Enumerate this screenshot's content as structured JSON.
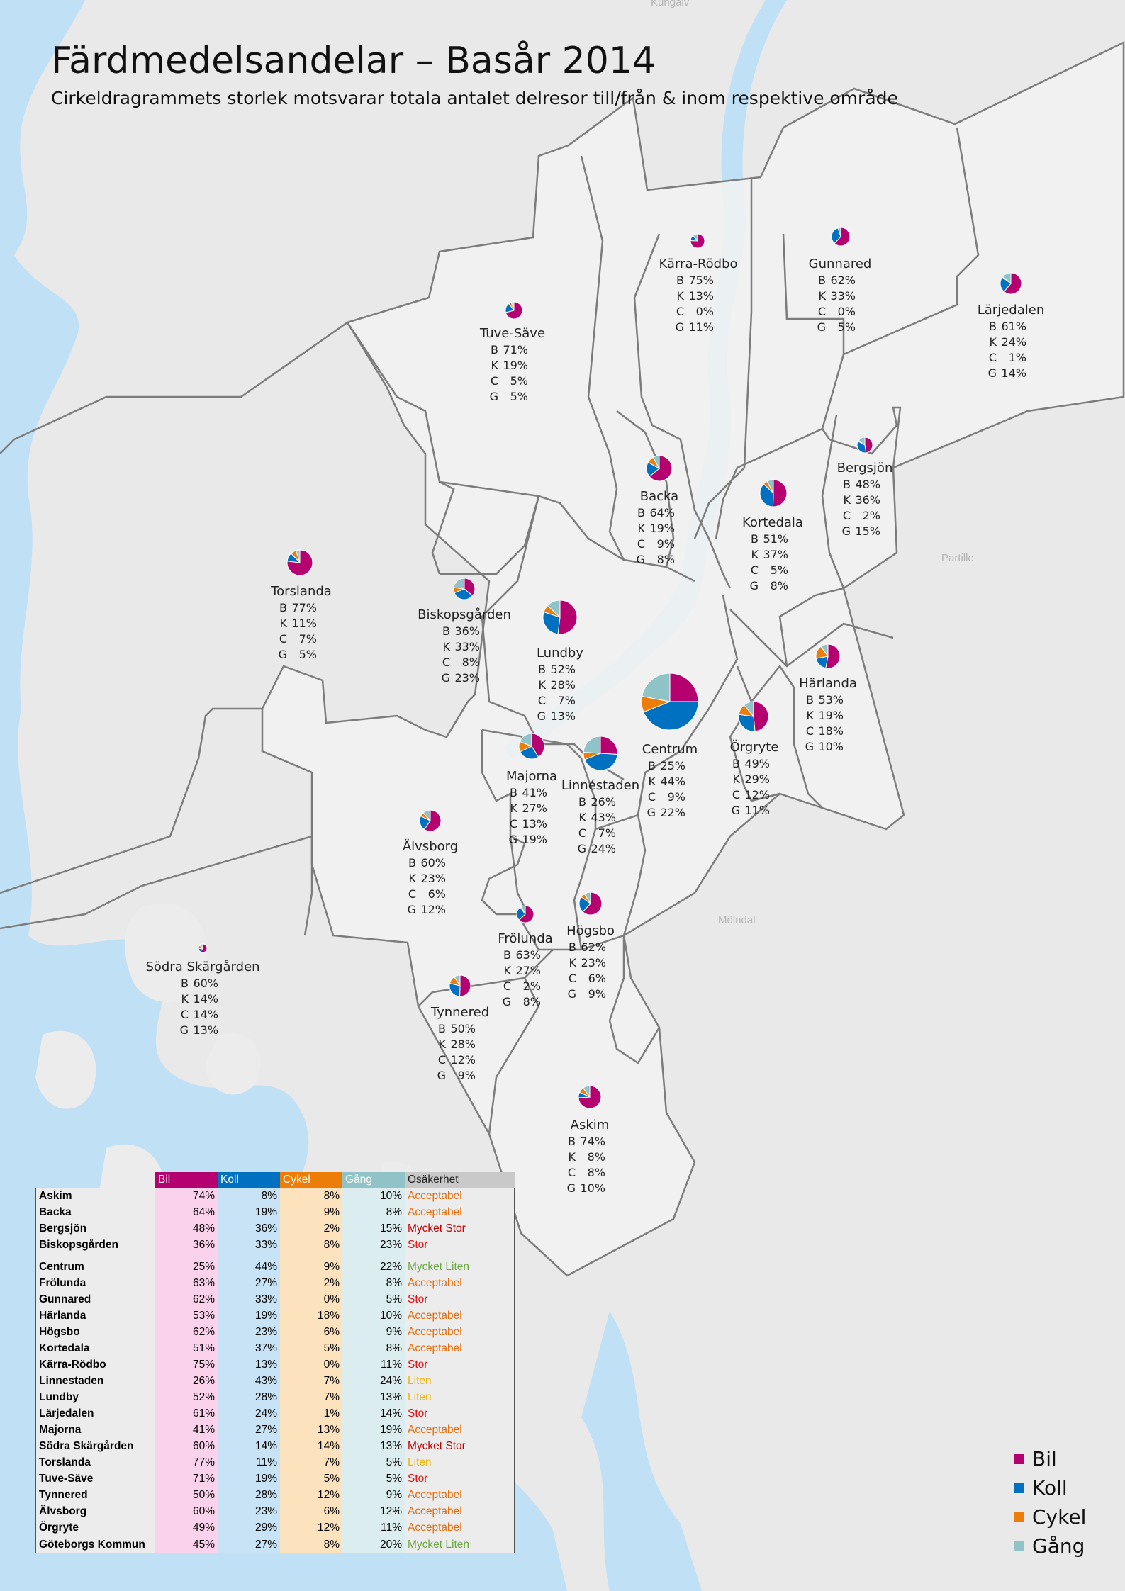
{
  "title": "Färdmedelsandelar – Basår 2014",
  "subtitle": "Cirkeldragrammets storlek motsvarar totala antalet delresor till/från & inom respektive område",
  "colors": {
    "bil": "#b5006f",
    "koll": "#0070c0",
    "cykel": "#ed7d09",
    "gang": "#8fc3c8",
    "water": "#bfe0f5",
    "land": "#e9e9e9",
    "border": "#7c7c7c"
  },
  "map_labels": [
    "Kungälv",
    "Partille",
    "Mölndal"
  ],
  "legend": [
    {
      "key": "bil",
      "label": "Bil"
    },
    {
      "key": "koll",
      "label": "Koll"
    },
    {
      "key": "cykel",
      "label": "Cykel"
    },
    {
      "key": "gang",
      "label": "Gång"
    }
  ],
  "stat_letters": [
    "B",
    "K",
    "C",
    "G"
  ],
  "regions": [
    {
      "name": "Kärra-Rödbo",
      "b": "75%",
      "k": "13%",
      "c": "0%",
      "g": "11%"
    },
    {
      "name": "Gunnared",
      "b": "62%",
      "k": "33%",
      "c": "0%",
      "g": "5%"
    },
    {
      "name": "Lärjedalen",
      "b": "61%",
      "k": "24%",
      "c": "1%",
      "g": "14%"
    },
    {
      "name": "Tuve-Säve",
      "b": "71%",
      "k": "19%",
      "c": "5%",
      "g": "5%"
    },
    {
      "name": "Bergsjön",
      "b": "48%",
      "k": "36%",
      "c": "2%",
      "g": "15%"
    },
    {
      "name": "Backa",
      "b": "64%",
      "k": "19%",
      "c": "9%",
      "g": "8%"
    },
    {
      "name": "Kortedala",
      "b": "51%",
      "k": "37%",
      "c": "5%",
      "g": "8%"
    },
    {
      "name": "Torslanda",
      "b": "77%",
      "k": "11%",
      "c": "7%",
      "g": "5%"
    },
    {
      "name": "Biskopsgården",
      "b": "36%",
      "k": "33%",
      "c": "8%",
      "g": "23%"
    },
    {
      "name": "Lundby",
      "b": "52%",
      "k": "28%",
      "c": "7%",
      "g": "13%"
    },
    {
      "name": "Härlanda",
      "b": "53%",
      "k": "19%",
      "c": "18%",
      "g": "10%"
    },
    {
      "name": "Centrum",
      "b": "25%",
      "k": "44%",
      "c": "9%",
      "g": "22%"
    },
    {
      "name": "Örgryte",
      "b": "49%",
      "k": "29%",
      "c": "12%",
      "g": "11%"
    },
    {
      "name": "Majorna",
      "b": "41%",
      "k": "27%",
      "c": "13%",
      "g": "19%"
    },
    {
      "name": "Linnéstaden",
      "b": "26%",
      "k": "43%",
      "c": "7%",
      "g": "24%"
    },
    {
      "name": "Älvsborg",
      "b": "60%",
      "k": "23%",
      "c": "6%",
      "g": "12%"
    },
    {
      "name": "Högsbo",
      "b": "62%",
      "k": "23%",
      "c": "6%",
      "g": "9%"
    },
    {
      "name": "Frölunda",
      "b": "63%",
      "k": "27%",
      "c": "2%",
      "g": "8%"
    },
    {
      "name": "Södra Skärgården",
      "b": "60%",
      "k": "14%",
      "c": "14%",
      "g": "13%"
    },
    {
      "name": "Tynnered",
      "b": "50%",
      "k": "28%",
      "c": "12%",
      "g": "9%"
    },
    {
      "name": "Askim",
      "b": "74%",
      "k": "8%",
      "c": "8%",
      "g": "10%"
    }
  ],
  "table": {
    "headers": {
      "bil": "Bil",
      "koll": "Koll",
      "cykel": "Cykel",
      "gang": "Gång",
      "osakerhet": "Osäkerhet"
    },
    "uncertainty_colors": {
      "Acceptabel": "#e46c0a",
      "Mycket Stor": "#c00000",
      "Stor": "#e01010",
      "Mycket Liten": "#6aa842",
      "Liten": "#f0b400"
    },
    "rows": [
      {
        "name": "Askim",
        "bil": "74%",
        "koll": "8%",
        "cykel": "8%",
        "gang": "10%",
        "os": "Acceptabel"
      },
      {
        "name": "Backa",
        "bil": "64%",
        "koll": "19%",
        "cykel": "9%",
        "gang": "8%",
        "os": "Acceptabel"
      },
      {
        "name": "Bergsjön",
        "bil": "48%",
        "koll": "36%",
        "cykel": "2%",
        "gang": "15%",
        "os": "Mycket Stor"
      },
      {
        "name": "Biskopsgården",
        "bil": "36%",
        "koll": "33%",
        "cykel": "8%",
        "gang": "23%",
        "os": "Stor"
      },
      {
        "name": "Centrum",
        "bil": "25%",
        "koll": "44%",
        "cykel": "9%",
        "gang": "22%",
        "os": "Mycket Liten"
      },
      {
        "name": "Frölunda",
        "bil": "63%",
        "koll": "27%",
        "cykel": "2%",
        "gang": "8%",
        "os": "Acceptabel"
      },
      {
        "name": "Gunnared",
        "bil": "62%",
        "koll": "33%",
        "cykel": "0%",
        "gang": "5%",
        "os": "Stor"
      },
      {
        "name": "Härlanda",
        "bil": "53%",
        "koll": "19%",
        "cykel": "18%",
        "gang": "10%",
        "os": "Acceptabel"
      },
      {
        "name": "Högsbo",
        "bil": "62%",
        "koll": "23%",
        "cykel": "6%",
        "gang": "9%",
        "os": "Acceptabel"
      },
      {
        "name": "Kortedala",
        "bil": "51%",
        "koll": "37%",
        "cykel": "5%",
        "gang": "8%",
        "os": "Acceptabel"
      },
      {
        "name": "Kärra-Rödbo",
        "bil": "75%",
        "koll": "13%",
        "cykel": "0%",
        "gang": "11%",
        "os": "Stor"
      },
      {
        "name": "Linnestaden",
        "bil": "26%",
        "koll": "43%",
        "cykel": "7%",
        "gang": "24%",
        "os": "Liten"
      },
      {
        "name": "Lundby",
        "bil": "52%",
        "koll": "28%",
        "cykel": "7%",
        "gang": "13%",
        "os": "Liten"
      },
      {
        "name": "Lärjedalen",
        "bil": "61%",
        "koll": "24%",
        "cykel": "1%",
        "gang": "14%",
        "os": "Stor"
      },
      {
        "name": "Majorna",
        "bil": "41%",
        "koll": "27%",
        "cykel": "13%",
        "gang": "19%",
        "os": "Acceptabel"
      },
      {
        "name": "Södra Skärgården",
        "bil": "60%",
        "koll": "14%",
        "cykel": "14%",
        "gang": "13%",
        "os": "Mycket Stor"
      },
      {
        "name": "Torslanda",
        "bil": "77%",
        "koll": "11%",
        "cykel": "7%",
        "gang": "5%",
        "os": "Liten"
      },
      {
        "name": "Tuve-Säve",
        "bil": "71%",
        "koll": "19%",
        "cykel": "5%",
        "gang": "5%",
        "os": "Stor"
      },
      {
        "name": "Tynnered",
        "bil": "50%",
        "koll": "28%",
        "cykel": "12%",
        "gang": "9%",
        "os": "Acceptabel"
      },
      {
        "name": "Älvsborg",
        "bil": "60%",
        "koll": "23%",
        "cykel": "6%",
        "gang": "12%",
        "os": "Acceptabel"
      },
      {
        "name": "Örgryte",
        "bil": "49%",
        "koll": "29%",
        "cykel": "12%",
        "gang": "11%",
        "os": "Acceptabel"
      }
    ],
    "total": {
      "name": "Göteborgs Kommun",
      "bil": "45%",
      "koll": "27%",
      "cykel": "8%",
      "gang": "20%",
      "os": "Mycket Liten"
    }
  }
}
